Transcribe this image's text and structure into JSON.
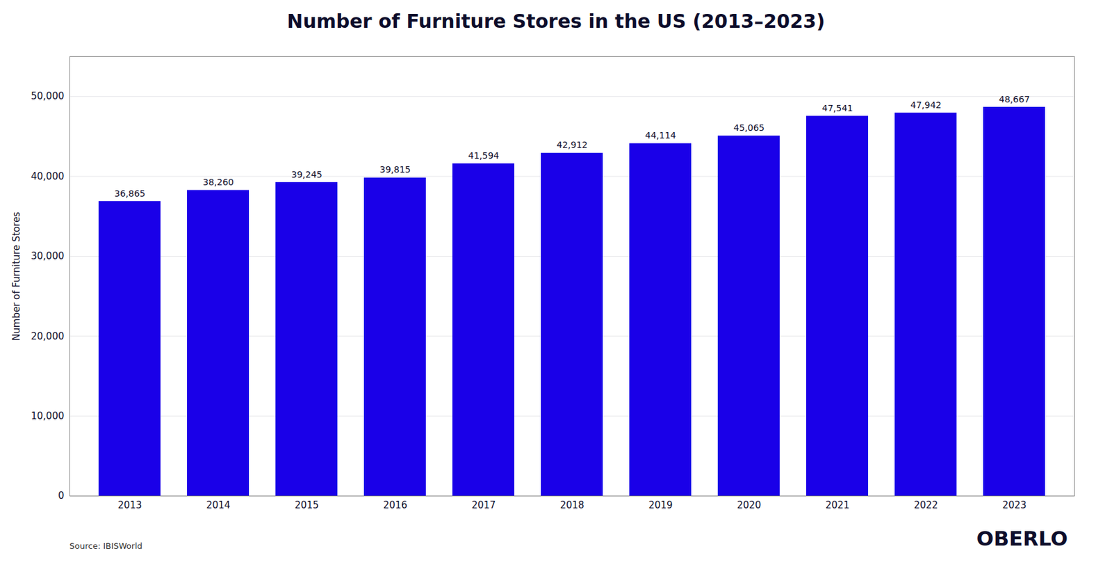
{
  "chart_data": {
    "type": "bar",
    "title": "Number of Furniture Stores in the US (2013–2023)",
    "categories": [
      "2013",
      "2014",
      "2015",
      "2016",
      "2017",
      "2018",
      "2019",
      "2020",
      "2021",
      "2022",
      "2023"
    ],
    "values": [
      36865,
      38260,
      39245,
      39815,
      41594,
      42912,
      44114,
      45065,
      47541,
      47942,
      48667
    ],
    "value_labels": [
      "36,865",
      "38,260",
      "39,245",
      "39,815",
      "41,594",
      "42,912",
      "44,114",
      "45,065",
      "47,541",
      "47,942",
      "48,667"
    ],
    "data_labels": true,
    "color": "#1a00e8",
    "ylabel": "Number of Furniture Stores",
    "ylim": [
      0,
      55000
    ],
    "yticks": [
      0,
      {
        "value": 10000,
        "label": "10,000"
      },
      {
        "value": 20000,
        "label": "20,000"
      },
      {
        "value": 30000,
        "label": "30,000"
      },
      {
        "value": 40000,
        "label": "40,000"
      },
      {
        "value": 50000,
        "label": "50,000"
      }
    ],
    "grid": true,
    "annotations": [
      "Source: IBISWorld",
      "OBERLO"
    ]
  }
}
